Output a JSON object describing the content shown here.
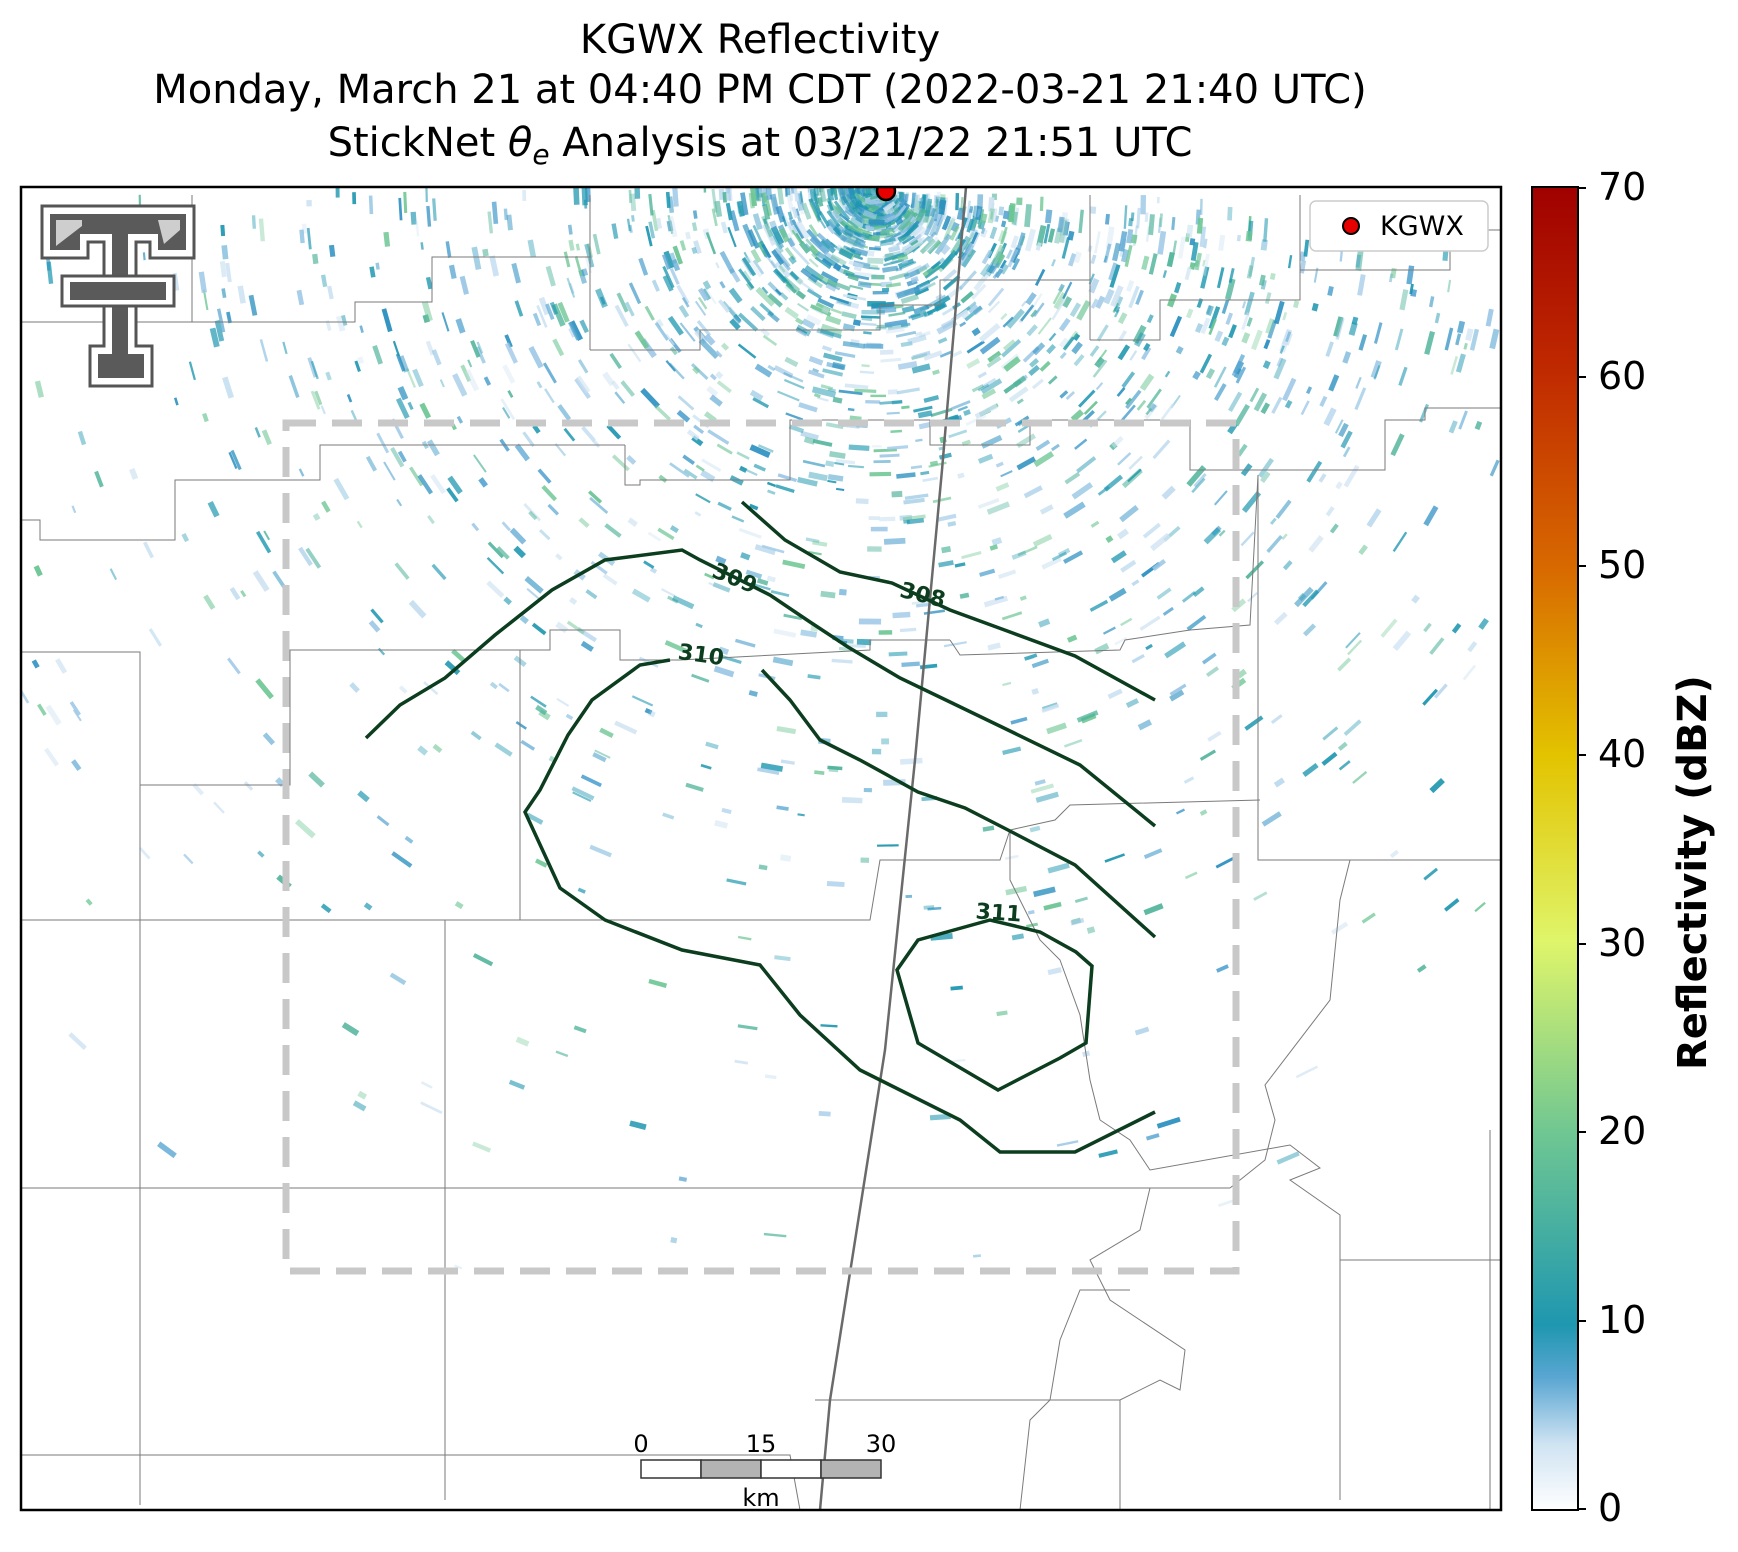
{
  "title": {
    "line1": "KGWX Reflectivity",
    "line2": "Monday, March 21 at 04:40 PM CDT (2022-03-21 21:40 UTC)",
    "line3_prefix": "StickNet ",
    "line3_theta": "θ",
    "line3_sub": "e",
    "line3_suffix": " Analysis at 03/21/22 21:51 UTC"
  },
  "legend": {
    "label": "KGWX",
    "marker_color": "#e60000"
  },
  "colorbar": {
    "label": "Reflectivity (dBZ)",
    "ticks": [
      "70",
      "60",
      "50",
      "40",
      "30",
      "20",
      "10",
      "0"
    ],
    "range": [
      0,
      70
    ]
  },
  "contours": [
    {
      "label": "308"
    },
    {
      "label": "309"
    },
    {
      "label": "310"
    },
    {
      "label": "311"
    }
  ],
  "scale_bar": {
    "ticks": [
      "0",
      "15",
      "30"
    ],
    "unit": "km"
  },
  "logo": {
    "name": "texas-tech-double-t-logo"
  },
  "colors": {
    "contour": "#0b3d1e",
    "analysis_box": "#c8c8c8",
    "radar_site": "#e60000"
  }
}
